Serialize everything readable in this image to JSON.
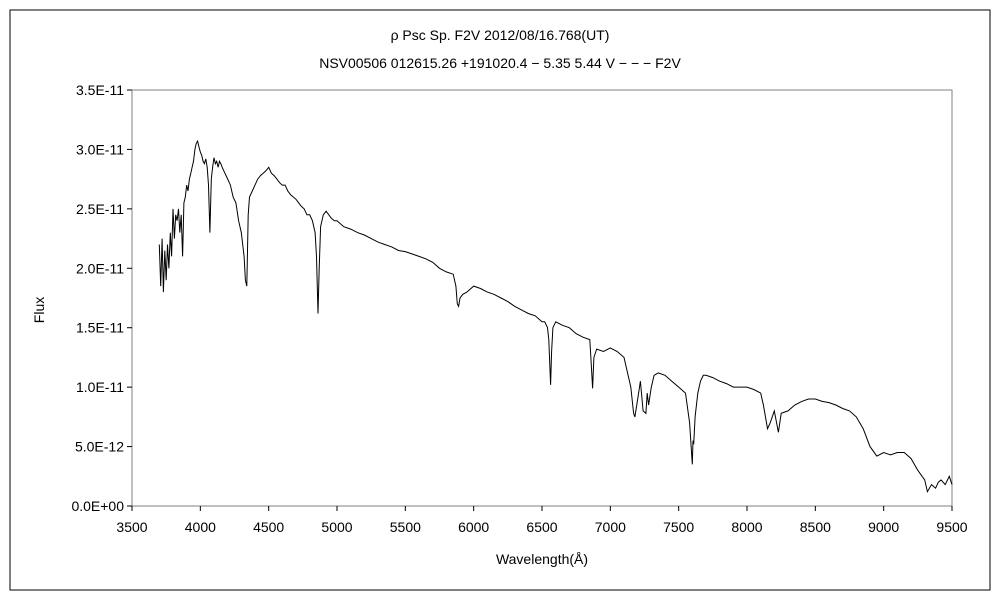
{
  "chart_data": {
    "type": "line",
    "title": "ρ Psc    Sp. F2V    2012/08/16.768(UT)",
    "subtitle": "NSV00506 012615.26 +191020.4 − 5.35 5.44 V − − − F2V",
    "xlabel": "Wavelength(Å)",
    "ylabel": "Flux",
    "xlim": [
      3500,
      9500
    ],
    "ylim": [
      0,
      3.5e-11
    ],
    "x_ticks": [
      3500,
      4000,
      4500,
      5000,
      5500,
      6000,
      6500,
      7000,
      7500,
      8000,
      8500,
      9000,
      9500
    ],
    "x_tick_labels": [
      "3500",
      "4000",
      "4500",
      "5000",
      "5500",
      "6000",
      "6500",
      "7000",
      "7500",
      "8000",
      "8500",
      "9000",
      "9500"
    ],
    "y_ticks": [
      0,
      5e-12,
      1e-11,
      1.5e-11,
      2e-11,
      2.5e-11,
      3e-11,
      3.5e-11
    ],
    "y_tick_labels": [
      "0.0E+00",
      "5.0E-12",
      "1.0E-11",
      "1.5E-11",
      "2.0E-11",
      "2.5E-11",
      "3.0E-11",
      "3.5E-11"
    ],
    "grid": false,
    "legend": "none",
    "series_color": "#000000",
    "series": [
      {
        "x": [
          3700,
          3710,
          3720,
          3730,
          3740,
          3750,
          3760,
          3770,
          3780,
          3790,
          3800,
          3810,
          3820,
          3830,
          3840,
          3850,
          3860,
          3870,
          3880,
          3890,
          3900,
          3910,
          3920,
          3930,
          3940,
          3950,
          3960,
          3970,
          3980,
          3990,
          4000,
          4010,
          4020,
          4030,
          4040,
          4050,
          4060,
          4070,
          4080,
          4090,
          4100,
          4110,
          4120,
          4130,
          4140,
          4150,
          4160,
          4180,
          4200,
          4220,
          4240,
          4260,
          4280,
          4300,
          4320,
          4330,
          4340,
          4350,
          4360,
          4380,
          4400,
          4420,
          4440,
          4460,
          4480,
          4500,
          4520,
          4540,
          4560,
          4580,
          4600,
          4620,
          4640,
          4660,
          4680,
          4700,
          4720,
          4740,
          4760,
          4780,
          4800,
          4820,
          4840,
          4850,
          4861,
          4870,
          4880,
          4900,
          4920,
          4940,
          4960,
          4980,
          5000,
          5050,
          5100,
          5150,
          5200,
          5250,
          5300,
          5350,
          5400,
          5450,
          5500,
          5550,
          5600,
          5650,
          5700,
          5750,
          5800,
          5850,
          5870,
          5880,
          5890,
          5900,
          5920,
          5950,
          6000,
          6050,
          6100,
          6150,
          6200,
          6250,
          6300,
          6350,
          6400,
          6450,
          6500,
          6520,
          6540,
          6550,
          6563,
          6570,
          6580,
          6600,
          6650,
          6700,
          6750,
          6800,
          6850,
          6860,
          6870,
          6880,
          6900,
          6950,
          7000,
          7050,
          7100,
          7150,
          7170,
          7180,
          7200,
          7220,
          7240,
          7260,
          7270,
          7280,
          7300,
          7320,
          7350,
          7400,
          7450,
          7500,
          7550,
          7580,
          7600,
          7605,
          7610,
          7620,
          7640,
          7660,
          7680,
          7700,
          7750,
          7800,
          7850,
          7900,
          7950,
          8000,
          8050,
          8100,
          8120,
          8150,
          8170,
          8200,
          8230,
          8250,
          8300,
          8350,
          8400,
          8450,
          8500,
          8550,
          8600,
          8650,
          8700,
          8750,
          8800,
          8850,
          8900,
          8950,
          9000,
          9050,
          9100,
          9150,
          9200,
          9250,
          9300,
          9320,
          9350,
          9380,
          9400,
          9420,
          9450,
          9480,
          9500
        ],
        "y": [
          2.2e-11,
          1.85e-11,
          2.25e-11,
          1.8e-11,
          2.15e-11,
          1.9e-11,
          2.2e-11,
          2e-11,
          2.3e-11,
          2.1e-11,
          2.5e-11,
          2.25e-11,
          2.45e-11,
          2.4e-11,
          2.5e-11,
          2.3e-11,
          2.45e-11,
          2.1e-11,
          2.55e-11,
          2.6e-11,
          2.7e-11,
          2.65e-11,
          2.75e-11,
          2.8e-11,
          2.85e-11,
          2.9e-11,
          3e-11,
          3.05e-11,
          3.07e-11,
          3.02e-11,
          2.98e-11,
          2.95e-11,
          2.9e-11,
          2.88e-11,
          2.92e-11,
          2.85e-11,
          2.7e-11,
          2.3e-11,
          2.75e-11,
          2.85e-11,
          2.93e-11,
          2.88e-11,
          2.9e-11,
          2.85e-11,
          2.9e-11,
          2.88e-11,
          2.85e-11,
          2.8e-11,
          2.75e-11,
          2.7e-11,
          2.6e-11,
          2.55e-11,
          2.4e-11,
          2.3e-11,
          2.1e-11,
          1.9e-11,
          1.85e-11,
          2.45e-11,
          2.6e-11,
          2.65e-11,
          2.7e-11,
          2.75e-11,
          2.78e-11,
          2.8e-11,
          2.82e-11,
          2.85e-11,
          2.8e-11,
          2.78e-11,
          2.75e-11,
          2.72e-11,
          2.7e-11,
          2.7e-11,
          2.65e-11,
          2.62e-11,
          2.6e-11,
          2.58e-11,
          2.55e-11,
          2.52e-11,
          2.5e-11,
          2.45e-11,
          2.45e-11,
          2.4e-11,
          2.3e-11,
          2.1e-11,
          1.62e-11,
          2e-11,
          2.35e-11,
          2.45e-11,
          2.48e-11,
          2.45e-11,
          2.42e-11,
          2.4e-11,
          2.4e-11,
          2.35e-11,
          2.33e-11,
          2.3e-11,
          2.28e-11,
          2.25e-11,
          2.22e-11,
          2.2e-11,
          2.18e-11,
          2.15e-11,
          2.14e-11,
          2.12e-11,
          2.1e-11,
          2.08e-11,
          2.05e-11,
          2e-11,
          1.97e-11,
          1.95e-11,
          1.85e-11,
          1.7e-11,
          1.68e-11,
          1.75e-11,
          1.78e-11,
          1.8e-11,
          1.85e-11,
          1.83e-11,
          1.8e-11,
          1.78e-11,
          1.75e-11,
          1.72e-11,
          1.68e-11,
          1.65e-11,
          1.62e-11,
          1.6e-11,
          1.55e-11,
          1.55e-11,
          1.5e-11,
          1.4e-11,
          1.02e-11,
          1.3e-11,
          1.5e-11,
          1.55e-11,
          1.52e-11,
          1.5e-11,
          1.45e-11,
          1.42e-11,
          1.4e-11,
          1.2e-11,
          9.9e-12,
          1.25e-11,
          1.32e-11,
          1.3e-11,
          1.33e-11,
          1.3e-11,
          1.25e-11,
          1e-11,
          7.8e-12,
          7.5e-12,
          9e-12,
          1.05e-11,
          8e-12,
          7.8e-12,
          9.5e-12,
          8.5e-12,
          1e-11,
          1.1e-11,
          1.12e-11,
          1.1e-11,
          1.05e-11,
          1e-11,
          9.5e-12,
          7e-12,
          3.5e-12,
          5.5e-12,
          5.2e-12,
          7.5e-12,
          9.5e-12,
          1.05e-11,
          1.1e-11,
          1.1e-11,
          1.08e-11,
          1.05e-11,
          1.03e-11,
          1e-11,
          1e-11,
          1e-11,
          9.8e-12,
          9.5e-12,
          8.5e-12,
          6.5e-12,
          7e-12,
          8e-12,
          6.2e-12,
          7.8e-12,
          8e-12,
          8.5e-12,
          8.8e-12,
          9e-12,
          9e-12,
          8.8e-12,
          8.7e-12,
          8.5e-12,
          8.2e-12,
          8e-12,
          7.5e-12,
          6.5e-12,
          5e-12,
          4.2e-12,
          4.5e-12,
          4.3e-12,
          4.5e-12,
          4.5e-12,
          4e-12,
          3e-12,
          2.2e-12,
          1.2e-12,
          1.8e-12,
          1.5e-12,
          2e-12,
          2.2e-12,
          1.8e-12,
          2.5e-12,
          1.8e-12
        ]
      }
    ]
  }
}
